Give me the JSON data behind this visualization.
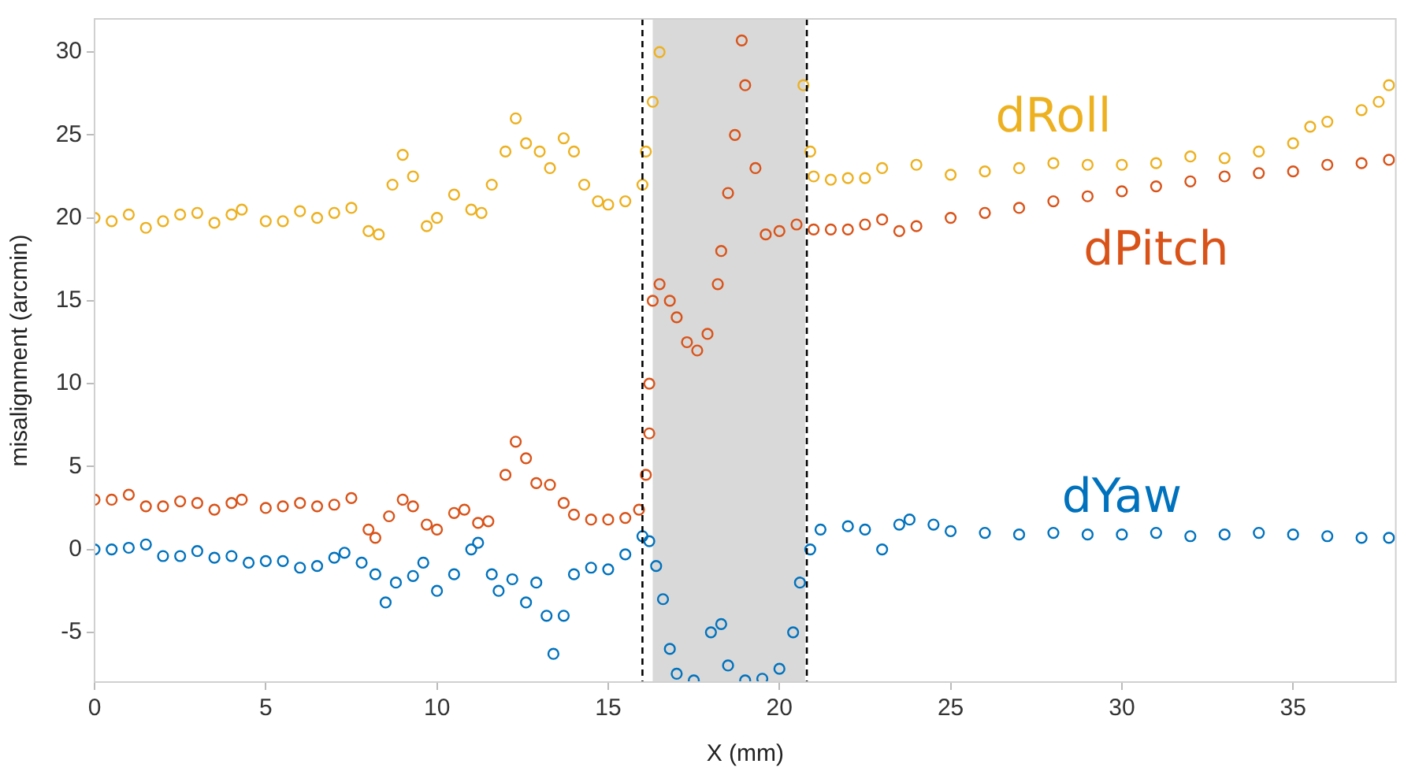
{
  "chart_data": {
    "type": "scatter",
    "xlabel": "X (mm)",
    "ylabel": "misalignment (arcmin)",
    "xlim": [
      0,
      38
    ],
    "ylim": [
      -8,
      32
    ],
    "xticks": [
      0,
      5,
      10,
      15,
      20,
      25,
      30,
      35
    ],
    "yticks": [
      -5,
      0,
      5,
      10,
      15,
      20,
      25,
      30
    ],
    "grid": false,
    "legend": false,
    "marker": "circle",
    "series": [
      {
        "name": "dRoll",
        "color": "#edb120",
        "x": [
          0,
          0.5,
          1,
          1.5,
          2,
          2.5,
          3,
          3.5,
          4,
          4.3,
          5,
          5.5,
          6,
          6.5,
          7,
          7.5,
          8,
          8.3,
          8.7,
          9,
          9.3,
          9.7,
          10,
          10.5,
          11,
          11.3,
          11.6,
          12,
          12.3,
          12.6,
          13,
          13.3,
          13.7,
          14,
          14.3,
          14.7,
          15,
          15.5,
          16,
          16.1,
          16.3,
          16.5,
          20.7,
          20.9,
          21,
          21.5,
          22,
          22.5,
          23,
          24,
          25,
          26,
          27,
          28,
          29,
          30,
          31,
          32,
          33,
          34,
          35,
          35.5,
          36,
          37,
          37.5,
          37.8
        ],
        "values": [
          20,
          19.8,
          20.2,
          19.4,
          19.8,
          20.2,
          20.3,
          19.7,
          20.2,
          20.5,
          19.8,
          19.8,
          20.4,
          20,
          20.3,
          20.6,
          19.2,
          19,
          22,
          23.8,
          22.5,
          19.5,
          20,
          21.4,
          20.5,
          20.3,
          22,
          24,
          26,
          24.5,
          24,
          23,
          24.8,
          24,
          22,
          21,
          20.8,
          21,
          22,
          24,
          27,
          30,
          28,
          24,
          22.5,
          22.3,
          22.4,
          22.4,
          23,
          23.2,
          22.6,
          22.8,
          23,
          23.3,
          23.2,
          23.2,
          23.3,
          23.7,
          23.6,
          24,
          24.5,
          25.5,
          25.8,
          26.5,
          27,
          28
        ]
      },
      {
        "name": "dPitch",
        "color": "#d95319",
        "x": [
          0,
          0.5,
          1,
          1.5,
          2,
          2.5,
          3,
          3.5,
          4,
          4.3,
          5,
          5.5,
          6,
          6.5,
          7,
          7.5,
          8,
          8.2,
          8.6,
          9,
          9.3,
          9.7,
          10,
          10.5,
          10.8,
          11.2,
          11.5,
          12,
          12.3,
          12.6,
          12.9,
          13.3,
          13.7,
          14,
          14.5,
          15,
          15.5,
          15.9,
          16.1,
          16.2,
          16.2,
          16.3,
          16.5,
          16.8,
          17,
          17.3,
          17.6,
          17.9,
          18.2,
          18.3,
          18.5,
          18.7,
          18.9,
          19,
          19.3,
          19.6,
          20,
          20.5,
          21,
          21.5,
          22,
          22.5,
          23,
          23.5,
          24,
          25,
          26,
          27,
          28,
          29,
          30,
          31,
          32,
          33,
          34,
          35,
          36,
          37,
          37.8
        ],
        "values": [
          3,
          3,
          3.3,
          2.6,
          2.6,
          2.9,
          2.8,
          2.4,
          2.8,
          3,
          2.5,
          2.6,
          2.8,
          2.6,
          2.7,
          3.1,
          1.2,
          0.7,
          2,
          3,
          2.6,
          1.5,
          1.2,
          2.2,
          2.4,
          1.6,
          1.7,
          4.5,
          6.5,
          5.5,
          4,
          3.9,
          2.8,
          2.1,
          1.8,
          1.8,
          1.9,
          2.4,
          4.5,
          7,
          10,
          15,
          16,
          15,
          14,
          12.5,
          12,
          13,
          16,
          18,
          21.5,
          25,
          30.7,
          28,
          23,
          19,
          19.2,
          19.6,
          19.3,
          19.3,
          19.3,
          19.6,
          19.9,
          19.2,
          19.5,
          20,
          20.3,
          20.6,
          21,
          21.3,
          21.6,
          21.9,
          22.2,
          22.5,
          22.7,
          22.8,
          23.2,
          23.3,
          23.5
        ]
      },
      {
        "name": "dYaw",
        "color": "#0072bd",
        "x": [
          0,
          0.5,
          1,
          1.5,
          2,
          2.5,
          3,
          3.5,
          4,
          4.5,
          5,
          5.5,
          6,
          6.5,
          7,
          7.3,
          7.8,
          8.2,
          8.5,
          8.8,
          9.3,
          9.6,
          10,
          10.5,
          11,
          11.2,
          11.6,
          11.8,
          12.2,
          12.6,
          12.9,
          13.2,
          13.4,
          13.7,
          14,
          14.5,
          15,
          15.5,
          16,
          16.2,
          16.4,
          16.6,
          16.8,
          17,
          17.5,
          18,
          18.3,
          18.5,
          19,
          19.5,
          20,
          20.4,
          20.6,
          20.9,
          21.2,
          22,
          22.5,
          23,
          23.5,
          23.8,
          24.5,
          25,
          26,
          27,
          28,
          29,
          30,
          31,
          32,
          33,
          34,
          35,
          36,
          37,
          37.8
        ],
        "values": [
          0,
          0,
          0.1,
          0.3,
          -0.4,
          -0.4,
          -0.1,
          -0.5,
          -0.4,
          -0.8,
          -0.7,
          -0.7,
          -1.1,
          -1,
          -0.5,
          -0.2,
          -0.8,
          -1.5,
          -3.2,
          -2,
          -1.6,
          -0.8,
          -2.5,
          -1.5,
          0,
          0.4,
          -1.5,
          -2.5,
          -1.8,
          -3.2,
          -2,
          -4,
          -6.3,
          -4,
          -1.5,
          -1.1,
          -1.2,
          -0.3,
          0.8,
          0.5,
          -1,
          -3,
          -6,
          -7.5,
          -7.9,
          -5,
          -4.5,
          -7,
          -7.9,
          -7.8,
          -7.2,
          -5,
          -2,
          0,
          1.2,
          1.4,
          1.2,
          0,
          1.5,
          1.8,
          1.5,
          1.1,
          1,
          0.9,
          1,
          0.9,
          0.9,
          1,
          0.8,
          0.9,
          1,
          0.9,
          0.8,
          0.7,
          0.7
        ]
      }
    ],
    "bands": [
      {
        "axis": "x",
        "from": 16.3,
        "to": 20.75,
        "color": "#d9d9d9"
      }
    ],
    "ref_lines": [
      {
        "axis": "x",
        "value": 16,
        "color": "#000000",
        "line_style": "dashed"
      },
      {
        "axis": "x",
        "value": 20.8,
        "color": "#000000",
        "line_style": "dashed"
      }
    ]
  }
}
